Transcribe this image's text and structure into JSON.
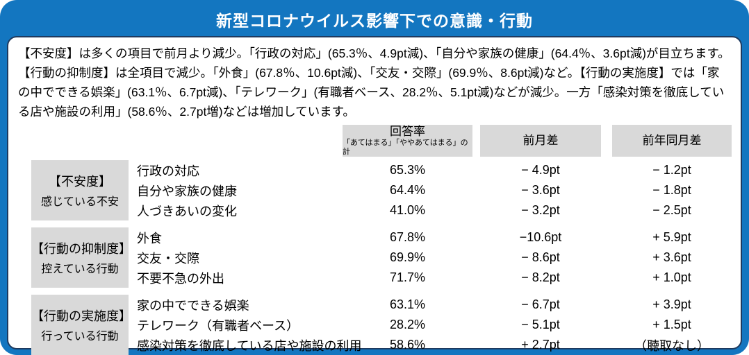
{
  "page": {
    "title": "新型コロナウイルス影響下での意識・行動",
    "accent_blue": "#1376c0",
    "inner_border": "#1e3a5f",
    "header_gray": "#d9d9d9"
  },
  "summary": {
    "text": "【不安度】は多くの項目で前月より減少。「行政の対応」(65.3％、4.9pt減)、「自分や家族の健康」(64.4％、3.6pt減)が目立ちます。【行動の抑制度】は全項目で減少。「外食」(67.8％、10.6pt減)、「交友・交際」(69.9％、8.6pt減)など。【行動の実施度】では「家の中でできる娯楽」(63.1％、6.7pt減)、「テレワーク」(有職者ベース、28.2％、5.1pt減)などが減少。一方「感染対策を徹底している店や施設の利用」(58.6％、2.7pt増)などは増加しています。"
  },
  "table": {
    "headers": {
      "rate": "回答率",
      "rate_sub": "「あてはまる」「ややあてはまる」の計",
      "mom": "前月差",
      "yoy": "前年同月差"
    },
    "groups": [
      {
        "category": "【不安度】",
        "subcategory": "感じている不安",
        "items": [
          {
            "label": "行政の対応",
            "rate": "65.3%",
            "mom": "− 4.9pt",
            "yoy": "− 1.2pt"
          },
          {
            "label": "自分や家族の健康",
            "rate": "64.4%",
            "mom": "− 3.6pt",
            "yoy": "− 1.8pt"
          },
          {
            "label": "人づきあいの変化",
            "rate": "41.0%",
            "mom": "− 3.2pt",
            "yoy": "− 2.5pt"
          }
        ]
      },
      {
        "category": "【行動の抑制度】",
        "subcategory": "控えている行動",
        "items": [
          {
            "label": "外食",
            "rate": "67.8%",
            "mom": "−10.6pt",
            "yoy": "+ 5.9pt"
          },
          {
            "label": "交友・交際",
            "rate": "69.9%",
            "mom": "− 8.6pt",
            "yoy": "+ 3.6pt"
          },
          {
            "label": "不要不急の外出",
            "rate": "71.7%",
            "mom": "− 8.2pt",
            "yoy": "+ 1.0pt"
          }
        ]
      },
      {
        "category": "【行動の実施度】",
        "subcategory": "行っている行動",
        "items": [
          {
            "label": "家の中でできる娯楽",
            "rate": "63.1%",
            "mom": "− 6.7pt",
            "yoy": "+ 3.9pt"
          },
          {
            "label": "テレワーク（有職者ベース）",
            "rate": "28.2%",
            "mom": "− 5.1pt",
            "yoy": "+ 1.5pt"
          },
          {
            "label": "感染対策を徹底している店や施設の利用",
            "rate": "58.6%",
            "mom": "+ 2.7pt",
            "yoy": "（聴取なし）"
          }
        ]
      }
    ]
  }
}
